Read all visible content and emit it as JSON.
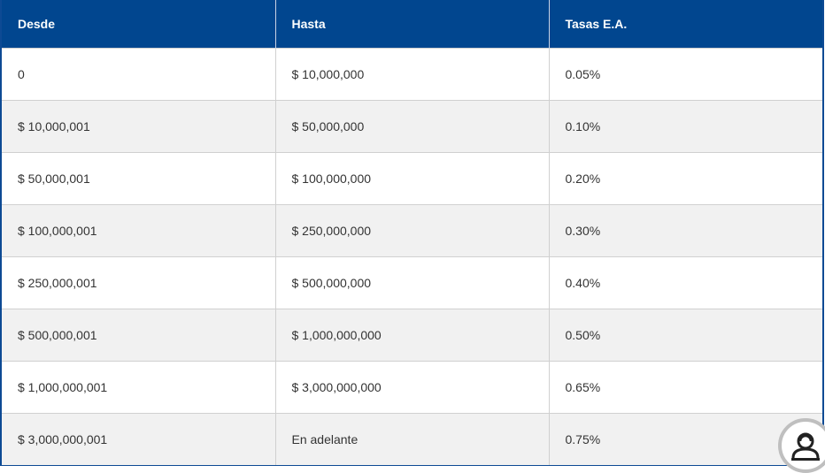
{
  "table": {
    "headers": [
      "Desde",
      "Hasta",
      "Tasas E.A."
    ],
    "rows": [
      [
        "0",
        "$ 10,000,000",
        "0.05%"
      ],
      [
        "$ 10,000,001",
        "$ 50,000,000",
        "0.10%"
      ],
      [
        "$ 50,000,001",
        "$ 100,000,000",
        "0.20%"
      ],
      [
        "$ 100,000,001",
        "$ 250,000,000",
        "0.30%"
      ],
      [
        "$ 250,000,001",
        "$ 500,000,000",
        "0.40%"
      ],
      [
        "$ 500,000,001",
        "$ 1,000,000,000",
        "0.50%"
      ],
      [
        "$ 1,000,000,001",
        "$ 3,000,000,000",
        "0.65%"
      ],
      [
        "$ 3,000,000,001",
        "En adelante",
        "0.75%"
      ]
    ]
  },
  "colors": {
    "header_bg": "#01468f",
    "row_alt_bg": "#f1f1f1",
    "border_accent": "#0d4a94"
  },
  "icons": {
    "chat_badge": "chat-assistant-icon"
  }
}
